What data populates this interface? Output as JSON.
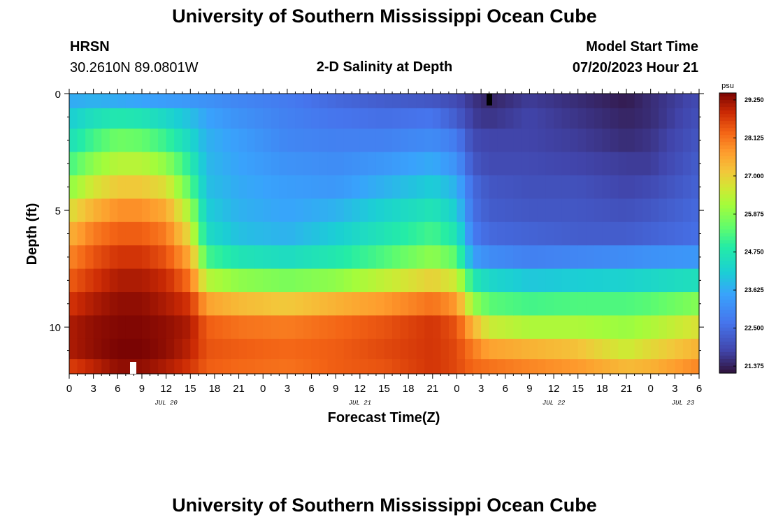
{
  "page_title": "University of Southern Mississippi Ocean Cube",
  "footer_title": "University of Southern Mississippi Ocean Cube",
  "station": {
    "name": "HRSN",
    "coords": "30.2610N  89.0801W"
  },
  "model": {
    "label": "Model Start Time",
    "time": "07/20/2023 Hour 21"
  },
  "chart_data": {
    "type": "heatmap",
    "title": "2-D Salinity at Depth",
    "xlabel": "Forecast Time(Z)",
    "ylabel": "Depth (ft)",
    "x_tick_labels": [
      "0",
      "3",
      "6",
      "9",
      "12",
      "15",
      "18",
      "21",
      "0",
      "3",
      "6",
      "9",
      "12",
      "15",
      "18",
      "21",
      "0",
      "3",
      "6",
      "9",
      "12",
      "15",
      "18",
      "21",
      "0",
      "3",
      "6"
    ],
    "date_labels": [
      {
        "label": "JUL 20",
        "hour": 12
      },
      {
        "label": "JUL 21",
        "hour": 36
      },
      {
        "label": "JUL 22",
        "hour": 60
      },
      {
        "label": "JUL 23",
        "hour": 76
      }
    ],
    "x_range_hours": [
      0,
      78
    ],
    "y_tick_labels": [
      {
        "label": "0",
        "value": 0
      },
      {
        "label": "5",
        "value": 5
      },
      {
        "label": "10",
        "value": 10
      }
    ],
    "y_range_ft": [
      0,
      12
    ],
    "depth_levels_ft": [
      0.25,
      1,
      2,
      3,
      4,
      5,
      6,
      7,
      8,
      9,
      10,
      11,
      11.75
    ],
    "colorbar": {
      "unit": "psu",
      "min": 21.375,
      "max": 29.25,
      "tick_labels": [
        "29.250",
        "28.125",
        "27.000",
        "25.875",
        "24.750",
        "23.625",
        "22.500",
        "21.375"
      ]
    },
    "profile_keyframes": [
      {
        "hour": 0,
        "values": [
          23.7,
          24.2,
          24.6,
          25.2,
          25.9,
          26.7,
          27.3,
          27.8,
          28.2,
          28.6,
          28.9,
          28.9,
          28.5
        ]
      },
      {
        "hour": 3,
        "values": [
          23.8,
          24.6,
          25.2,
          25.9,
          26.6,
          27.3,
          27.9,
          28.3,
          28.6,
          28.9,
          29.1,
          29.1,
          28.8
        ]
      },
      {
        "hour": 6,
        "values": [
          23.7,
          24.8,
          25.6,
          26.3,
          27.0,
          27.7,
          28.2,
          28.6,
          28.9,
          29.1,
          29.2,
          29.25,
          29.1
        ]
      },
      {
        "hour": 9,
        "values": [
          23.6,
          24.7,
          25.5,
          26.3,
          27.0,
          27.7,
          28.2,
          28.6,
          28.9,
          29.1,
          29.2,
          29.25,
          29.1
        ]
      },
      {
        "hour": 12,
        "values": [
          23.5,
          24.4,
          25.1,
          25.9,
          26.7,
          27.4,
          27.9,
          28.3,
          28.7,
          28.9,
          29.1,
          29.1,
          28.9
        ]
      },
      {
        "hour": 15,
        "values": [
          23.4,
          24.0,
          24.4,
          24.9,
          25.4,
          26.1,
          26.7,
          27.4,
          28.0,
          28.6,
          28.9,
          28.8,
          28.6
        ]
      },
      {
        "hour": 17,
        "values": [
          23.3,
          23.6,
          23.8,
          23.9,
          24.0,
          24.2,
          24.5,
          25.2,
          26.3,
          27.5,
          28.2,
          28.3,
          28.2
        ]
      },
      {
        "hour": 21,
        "values": [
          23.1,
          23.3,
          23.5,
          23.6,
          23.7,
          23.8,
          24.0,
          24.7,
          25.9,
          27.2,
          28.0,
          28.2,
          28.1
        ]
      },
      {
        "hour": 27,
        "values": [
          22.9,
          23.0,
          23.1,
          23.3,
          23.5,
          23.6,
          23.8,
          24.5,
          25.7,
          27.0,
          27.9,
          28.1,
          28.0
        ]
      },
      {
        "hour": 33,
        "values": [
          22.6,
          22.8,
          23.0,
          23.2,
          23.4,
          23.8,
          24.2,
          24.8,
          25.9,
          27.3,
          28.1,
          28.2,
          28.2
        ]
      },
      {
        "hour": 39,
        "values": [
          22.4,
          22.7,
          23.0,
          23.4,
          23.8,
          24.3,
          24.7,
          25.3,
          26.4,
          27.6,
          28.3,
          28.4,
          28.3
        ]
      },
      {
        "hour": 45,
        "values": [
          22.3,
          22.8,
          23.2,
          23.7,
          24.2,
          24.7,
          25.2,
          25.9,
          26.9,
          28.0,
          28.6,
          28.6,
          28.6
        ]
      },
      {
        "hour": 48,
        "values": [
          22.1,
          22.4,
          22.9,
          23.3,
          23.8,
          24.2,
          24.7,
          25.4,
          26.5,
          27.6,
          28.3,
          28.4,
          28.4
        ]
      },
      {
        "hour": 50,
        "values": [
          21.8,
          21.9,
          22.1,
          22.3,
          22.6,
          22.7,
          22.9,
          23.5,
          24.8,
          26.0,
          27.3,
          27.9,
          28.1
        ]
      },
      {
        "hour": 52,
        "values": [
          21.6,
          21.8,
          22.0,
          22.1,
          22.3,
          22.4,
          22.6,
          23.2,
          24.4,
          25.4,
          26.5,
          27.5,
          28.0
        ]
      },
      {
        "hour": 57,
        "values": [
          21.9,
          22.0,
          22.0,
          22.1,
          22.2,
          22.3,
          22.5,
          23.0,
          24.1,
          25.2,
          26.2,
          27.3,
          27.8
        ]
      },
      {
        "hour": 63,
        "values": [
          21.7,
          21.8,
          21.9,
          22.0,
          22.2,
          22.3,
          22.4,
          23.1,
          24.2,
          25.3,
          26.2,
          27.1,
          27.6
        ]
      },
      {
        "hour": 69,
        "values": [
          21.5,
          21.6,
          21.7,
          21.9,
          22.0,
          22.2,
          22.4,
          23.2,
          24.3,
          25.3,
          26.0,
          26.5,
          27.2
        ]
      },
      {
        "hour": 72,
        "values": [
          21.7,
          21.7,
          21.8,
          21.9,
          22.1,
          22.3,
          22.5,
          23.3,
          24.4,
          25.4,
          26.2,
          26.8,
          27.3
        ]
      },
      {
        "hour": 78,
        "values": [
          22.1,
          22.2,
          22.3,
          22.4,
          22.5,
          22.6,
          22.7,
          23.4,
          24.6,
          25.8,
          26.7,
          27.3,
          27.8
        ]
      }
    ]
  }
}
